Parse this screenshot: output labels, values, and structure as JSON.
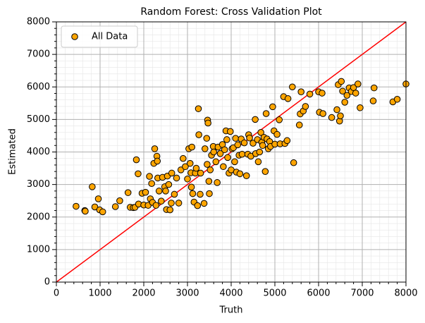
{
  "chart_data": {
    "type": "scatter",
    "title": "Random Forest: Cross Validation Plot",
    "xlabel": "Truth",
    "ylabel": "Estimated",
    "xlim": [
      0,
      8000
    ],
    "ylim": [
      0,
      8000
    ],
    "xticks": [
      0,
      1000,
      2000,
      3000,
      4000,
      5000,
      6000,
      7000,
      8000
    ],
    "yticks": [
      0,
      1000,
      2000,
      3000,
      4000,
      5000,
      6000,
      7000,
      8000
    ],
    "grid": true,
    "minor_grid": true,
    "legend": "upper left",
    "series": [
      {
        "name": "All Data",
        "color": "#ffa500",
        "edgecolor": "#000000",
        "x": [
          450,
          650,
          660,
          820,
          880,
          960,
          990,
          1060,
          1350,
          1450,
          1640,
          1690,
          1760,
          1800,
          1830,
          1870,
          1880,
          1960,
          2000,
          2040,
          2100,
          2130,
          2150,
          2180,
          2200,
          2230,
          2250,
          2280,
          2300,
          2310,
          2320,
          2350,
          2400,
          2430,
          2480,
          2500,
          2520,
          2540,
          2570,
          2600,
          2630,
          2640,
          2700,
          2750,
          2800,
          2850,
          2900,
          2950,
          3000,
          3030,
          3060,
          3080,
          3090,
          3100,
          3120,
          3150,
          3180,
          3200,
          3230,
          3250,
          3260,
          3290,
          3300,
          3380,
          3400,
          3440,
          3450,
          3460,
          3470,
          3490,
          3500,
          3520,
          3550,
          3590,
          3600,
          3650,
          3680,
          3700,
          3750,
          3800,
          3820,
          3850,
          3880,
          3900,
          3920,
          3950,
          3980,
          4000,
          4020,
          4050,
          4080,
          4100,
          4120,
          4150,
          4180,
          4200,
          4230,
          4250,
          4300,
          4350,
          4380,
          4400,
          4420,
          4450,
          4500,
          4550,
          4560,
          4600,
          4620,
          4650,
          4680,
          4700,
          4720,
          4750,
          4780,
          4800,
          4820,
          4850,
          4880,
          4900,
          4950,
          4980,
          5000,
          5050,
          5100,
          5120,
          5200,
          5230,
          5280,
          5300,
          5400,
          5430,
          5560,
          5580,
          5600,
          5650,
          5700,
          5800,
          6000,
          6020,
          6080,
          6100,
          6300,
          6420,
          6450,
          6480,
          6500,
          6520,
          6550,
          6600,
          6650,
          6700,
          6750,
          6800,
          6850,
          6900,
          6950,
          7250,
          7270,
          7700,
          7800,
          8000
        ],
        "values": [
          2330,
          2200,
          2180,
          2930,
          2310,
          2560,
          2220,
          2160,
          2320,
          2500,
          2750,
          2300,
          2290,
          2300,
          3760,
          3330,
          2400,
          2730,
          2370,
          2760,
          2360,
          3250,
          2560,
          3030,
          2450,
          3650,
          4100,
          2360,
          3870,
          3720,
          3200,
          2800,
          2490,
          3220,
          2930,
          2800,
          2230,
          3260,
          3000,
          2220,
          2430,
          3350,
          2700,
          3200,
          2430,
          3450,
          3800,
          3550,
          3170,
          4100,
          3650,
          3360,
          2920,
          4150,
          2720,
          2460,
          3350,
          3500,
          2350,
          5330,
          4530,
          2700,
          3350,
          2420,
          4100,
          4420,
          3620,
          4980,
          4890,
          3100,
          2720,
          3450,
          3900,
          4170,
          4000,
          3700,
          3060,
          4150,
          3950,
          4230,
          3550,
          4070,
          4650,
          4380,
          3830,
          3350,
          4630,
          3450,
          4100,
          4130,
          3700,
          4420,
          3380,
          4220,
          3900,
          3330,
          4400,
          3930,
          4280,
          3270,
          3930,
          4530,
          4430,
          3870,
          4270,
          5000,
          3950,
          4380,
          3700,
          4000,
          4600,
          4300,
          4200,
          4450,
          3400,
          5180,
          4400,
          4100,
          4320,
          4170,
          5390,
          4650,
          4240,
          4540,
          4990,
          4250,
          5700,
          4260,
          4350,
          5640,
          6000,
          3670,
          4830,
          5170,
          5850,
          5260,
          5400,
          5780,
          5850,
          5220,
          5810,
          5180,
          5060,
          5300,
          6070,
          4950,
          5110,
          6170,
          5870,
          5530,
          5740,
          5970,
          5860,
          5980,
          5810,
          6090,
          5360,
          5570,
          5970,
          5540,
          5620,
          6090
        ]
      }
    ],
    "reference_line": {
      "color": "#ff0000",
      "x": [
        0,
        8000
      ],
      "values": [
        0,
        8000
      ]
    }
  }
}
